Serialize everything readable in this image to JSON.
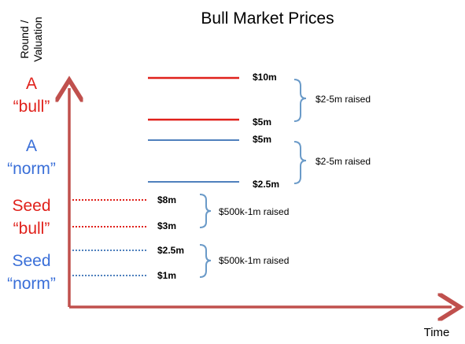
{
  "title": "Bull Market Prices",
  "y_axis_label": {
    "line1": "Round /",
    "line2": "Valuation"
  },
  "x_axis_label": "Time",
  "colors": {
    "red": "#e0211b",
    "blue": "#3a6fd8",
    "bracket": "#6a9ac8",
    "axis": "#c0504d",
    "text": "#000000"
  },
  "categories": [
    {
      "line1": "A",
      "line2": "“bull”",
      "color": "red"
    },
    {
      "line1": "A",
      "line2": "“norm”",
      "color": "blue"
    },
    {
      "line1": "Seed",
      "line2": "“bull”",
      "color": "red"
    },
    {
      "line1": "Seed",
      "line2": "“norm”",
      "color": "blue"
    }
  ],
  "ranges": [
    {
      "high": "$10m",
      "low": "$5m",
      "raised": "$2-5m raised",
      "color": "red",
      "style": "solid"
    },
    {
      "high": "$5m",
      "low": "$2.5m",
      "raised": "$2-5m raised",
      "color": "blue",
      "style": "solid"
    },
    {
      "high": "$8m",
      "low": "$3m",
      "raised": "$500k-1m raised",
      "color": "red",
      "style": "dotted"
    },
    {
      "high": "$2.5m",
      "low": "$1m",
      "raised": "$500k-1m raised",
      "color": "blue",
      "style": "dotted"
    }
  ]
}
